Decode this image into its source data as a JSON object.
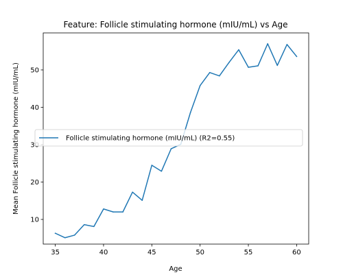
{
  "chart_data": {
    "type": "line",
    "title": "Feature: Follicle stimulating hormone (mIU/mL) vs Age",
    "xlabel": "Age",
    "ylabel": "Mean Follicle stimulating hormone (mIU/mL)",
    "xlim": [
      33.75,
      61.25
    ],
    "ylim": [
      3.4,
      59.9
    ],
    "xticks": [
      35,
      40,
      45,
      50,
      55,
      60
    ],
    "yticks": [
      10,
      20,
      30,
      40,
      50
    ],
    "grid": false,
    "legend_position": "center-left",
    "series": [
      {
        "name": "Follicle stimulating hormone (mIU/mL) (R2=0.55)",
        "color": "#1f77b4",
        "x": [
          35,
          36,
          37,
          38,
          39,
          40,
          41,
          42,
          43,
          44,
          45,
          46,
          47,
          48,
          49,
          50,
          51,
          52,
          53,
          54,
          55,
          56,
          57,
          58,
          59,
          60
        ],
        "y": [
          6.3,
          5.1,
          5.8,
          8.6,
          8.1,
          12.8,
          12.0,
          12.0,
          17.3,
          15.1,
          24.5,
          22.9,
          28.9,
          30.1,
          38.6,
          45.8,
          49.3,
          48.4,
          52.0,
          55.4,
          50.7,
          51.1,
          57.0,
          51.2,
          56.8,
          53.6
        ]
      }
    ]
  }
}
